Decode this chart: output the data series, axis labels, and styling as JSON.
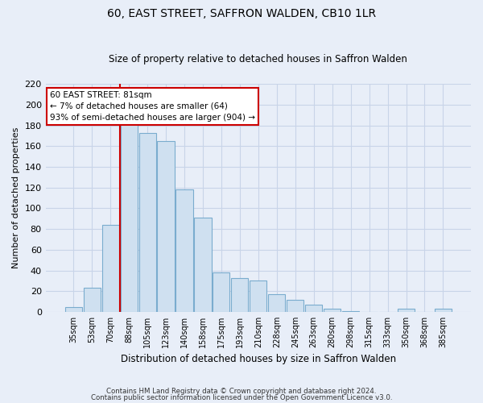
{
  "title": "60, EAST STREET, SAFFRON WALDEN, CB10 1LR",
  "subtitle": "Size of property relative to detached houses in Saffron Walden",
  "xlabel": "Distribution of detached houses by size in Saffron Walden",
  "ylabel": "Number of detached properties",
  "categories": [
    "35sqm",
    "53sqm",
    "70sqm",
    "88sqm",
    "105sqm",
    "123sqm",
    "140sqm",
    "158sqm",
    "175sqm",
    "193sqm",
    "210sqm",
    "228sqm",
    "245sqm",
    "263sqm",
    "280sqm",
    "298sqm",
    "315sqm",
    "333sqm",
    "350sqm",
    "368sqm",
    "385sqm"
  ],
  "values": [
    5,
    23,
    84,
    181,
    173,
    165,
    118,
    91,
    38,
    33,
    30,
    17,
    12,
    7,
    3,
    1,
    0,
    0,
    3,
    0,
    3
  ],
  "bar_color": "#cfe0f0",
  "bar_edge_color": "#7aacce",
  "vline_color": "#cc0000",
  "vline_x_index": 3,
  "annotation_title": "60 EAST STREET: 81sqm",
  "annotation_line1": "← 7% of detached houses are smaller (64)",
  "annotation_line2": "93% of semi-detached houses are larger (904) →",
  "annotation_box_facecolor": "#ffffff",
  "annotation_box_edgecolor": "#cc0000",
  "ylim": [
    0,
    220
  ],
  "yticks": [
    0,
    20,
    40,
    60,
    80,
    100,
    120,
    140,
    160,
    180,
    200,
    220
  ],
  "footer1": "Contains HM Land Registry data © Crown copyright and database right 2024.",
  "footer2": "Contains public sector information licensed under the Open Government Licence v3.0.",
  "bg_color": "#e8eef8",
  "grid_color": "#c8d4e8"
}
